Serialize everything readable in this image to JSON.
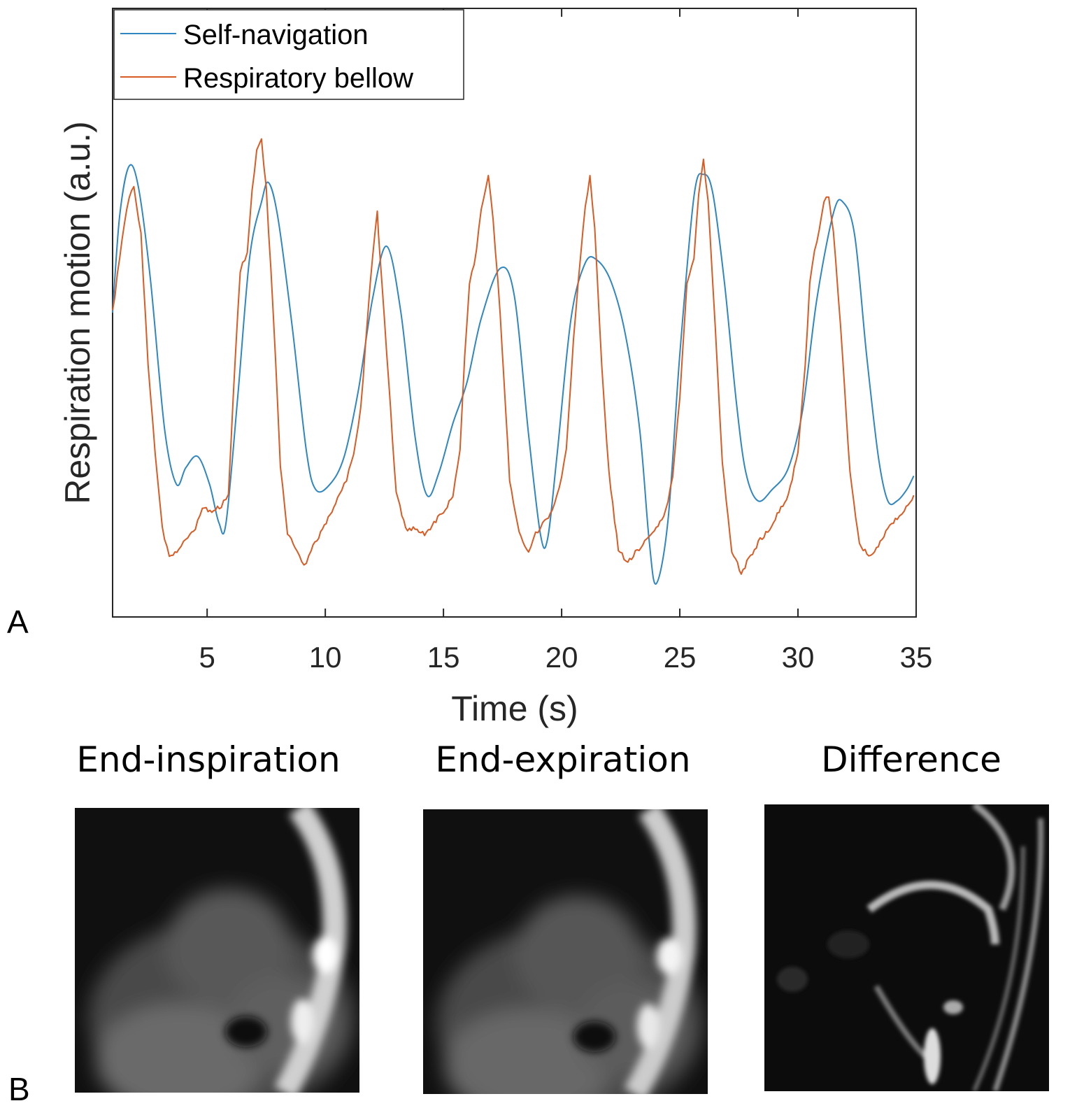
{
  "panel_labels": {
    "a": "A",
    "b": "B"
  },
  "chart_data": {
    "type": "line",
    "title": "",
    "xlabel": "Time (s)",
    "ylabel": "Respiration motion (a.u.)",
    "xlim": [
      1,
      35
    ],
    "ylim": [
      -1.1,
      1.1
    ],
    "xticks": [
      5,
      10,
      15,
      20,
      25,
      30,
      35
    ],
    "xtick_labels": [
      "5",
      "10",
      "15",
      "20",
      "25",
      "30",
      "35"
    ],
    "grid": false,
    "legend_position": "top-left",
    "series": [
      {
        "name": "Self-navigation",
        "color": "#2f86c1",
        "points": [
          [
            1,
            0.0
          ],
          [
            1.3,
            0.35
          ],
          [
            1.7,
            0.53
          ],
          [
            2.1,
            0.45
          ],
          [
            2.6,
            0.12
          ],
          [
            3.2,
            -0.42
          ],
          [
            3.7,
            -0.62
          ],
          [
            4.1,
            -0.56
          ],
          [
            4.6,
            -0.52
          ],
          [
            5.1,
            -0.62
          ],
          [
            5.5,
            -0.76
          ],
          [
            5.8,
            -0.76
          ],
          [
            6.3,
            -0.3
          ],
          [
            6.8,
            0.2
          ],
          [
            7.3,
            0.4
          ],
          [
            7.6,
            0.47
          ],
          [
            8.0,
            0.34
          ],
          [
            8.6,
            -0.05
          ],
          [
            9.2,
            -0.5
          ],
          [
            9.6,
            -0.64
          ],
          [
            10.2,
            -0.62
          ],
          [
            10.8,
            -0.52
          ],
          [
            11.4,
            -0.28
          ],
          [
            12.0,
            0.05
          ],
          [
            12.6,
            0.24
          ],
          [
            13.2,
            0.0
          ],
          [
            13.8,
            -0.45
          ],
          [
            14.3,
            -0.66
          ],
          [
            14.8,
            -0.58
          ],
          [
            15.4,
            -0.4
          ],
          [
            16.0,
            -0.25
          ],
          [
            16.6,
            -0.02
          ],
          [
            17.4,
            0.16
          ],
          [
            18.0,
            0.06
          ],
          [
            18.6,
            -0.44
          ],
          [
            19.1,
            -0.8
          ],
          [
            19.4,
            -0.82
          ],
          [
            19.8,
            -0.52
          ],
          [
            20.4,
            -0.02
          ],
          [
            21.0,
            0.18
          ],
          [
            21.5,
            0.19
          ],
          [
            22.1,
            0.11
          ],
          [
            22.7,
            -0.08
          ],
          [
            23.3,
            -0.42
          ],
          [
            23.7,
            -0.82
          ],
          [
            24.0,
            -0.98
          ],
          [
            24.5,
            -0.75
          ],
          [
            25.0,
            -0.15
          ],
          [
            25.6,
            0.42
          ],
          [
            26.0,
            0.5
          ],
          [
            26.4,
            0.43
          ],
          [
            26.9,
            0.1
          ],
          [
            27.4,
            -0.33
          ],
          [
            27.8,
            -0.58
          ],
          [
            28.3,
            -0.68
          ],
          [
            28.9,
            -0.64
          ],
          [
            29.6,
            -0.56
          ],
          [
            30.2,
            -0.35
          ],
          [
            30.8,
            0.05
          ],
          [
            31.5,
            0.36
          ],
          [
            31.9,
            0.4
          ],
          [
            32.4,
            0.28
          ],
          [
            32.9,
            -0.15
          ],
          [
            33.4,
            -0.52
          ],
          [
            33.8,
            -0.68
          ],
          [
            34.2,
            -0.68
          ],
          [
            34.6,
            -0.64
          ],
          [
            34.9,
            -0.59
          ]
        ]
      },
      {
        "name": "Respiratory bellow",
        "color": "#d95b24",
        "points": [
          [
            1,
            0.0
          ],
          [
            1.3,
            0.2
          ],
          [
            1.6,
            0.38
          ],
          [
            1.9,
            0.46
          ],
          [
            2.2,
            0.28
          ],
          [
            2.5,
            -0.18
          ],
          [
            2.8,
            -0.5
          ],
          [
            3.1,
            -0.78
          ],
          [
            3.4,
            -0.88
          ],
          [
            3.8,
            -0.86
          ],
          [
            4.1,
            -0.82
          ],
          [
            4.5,
            -0.78
          ],
          [
            4.8,
            -0.7
          ],
          [
            5.2,
            -0.72
          ],
          [
            5.6,
            -0.7
          ],
          [
            5.9,
            -0.66
          ],
          [
            6.1,
            -0.3
          ],
          [
            6.4,
            0.15
          ],
          [
            6.7,
            0.22
          ],
          [
            6.9,
            0.45
          ],
          [
            7.1,
            0.58
          ],
          [
            7.3,
            0.62
          ],
          [
            7.5,
            0.45
          ],
          [
            7.8,
            0.0
          ],
          [
            8.1,
            -0.55
          ],
          [
            8.4,
            -0.8
          ],
          [
            8.8,
            -0.86
          ],
          [
            9.1,
            -0.92
          ],
          [
            9.4,
            -0.86
          ],
          [
            9.8,
            -0.8
          ],
          [
            10.2,
            -0.73
          ],
          [
            10.6,
            -0.66
          ],
          [
            10.9,
            -0.6
          ],
          [
            11.2,
            -0.52
          ],
          [
            11.5,
            -0.35
          ],
          [
            11.8,
            0.0
          ],
          [
            12.0,
            0.2
          ],
          [
            12.2,
            0.36
          ],
          [
            12.3,
            0.22
          ],
          [
            12.6,
            -0.15
          ],
          [
            13.0,
            -0.65
          ],
          [
            13.4,
            -0.78
          ],
          [
            13.8,
            -0.78
          ],
          [
            14.2,
            -0.8
          ],
          [
            14.6,
            -0.76
          ],
          [
            15.0,
            -0.72
          ],
          [
            15.4,
            -0.66
          ],
          [
            15.7,
            -0.5
          ],
          [
            15.9,
            -0.15
          ],
          [
            16.1,
            0.1
          ],
          [
            16.4,
            0.22
          ],
          [
            16.6,
            0.38
          ],
          [
            16.9,
            0.5
          ],
          [
            17.1,
            0.34
          ],
          [
            17.4,
            0.0
          ],
          [
            17.8,
            -0.6
          ],
          [
            18.2,
            -0.8
          ],
          [
            18.6,
            -0.86
          ],
          [
            18.9,
            -0.8
          ],
          [
            19.2,
            -0.76
          ],
          [
            19.6,
            -0.72
          ],
          [
            19.9,
            -0.64
          ],
          [
            20.2,
            -0.5
          ],
          [
            20.5,
            -0.1
          ],
          [
            20.8,
            0.2
          ],
          [
            21.0,
            0.38
          ],
          [
            21.2,
            0.5
          ],
          [
            21.4,
            0.3
          ],
          [
            21.7,
            -0.2
          ],
          [
            22.0,
            -0.58
          ],
          [
            22.4,
            -0.86
          ],
          [
            22.8,
            -0.9
          ],
          [
            23.2,
            -0.86
          ],
          [
            23.6,
            -0.82
          ],
          [
            24.0,
            -0.78
          ],
          [
            24.4,
            -0.72
          ],
          [
            24.7,
            -0.6
          ],
          [
            25.0,
            -0.3
          ],
          [
            25.3,
            0.1
          ],
          [
            25.6,
            0.2
          ],
          [
            25.8,
            0.42
          ],
          [
            26.0,
            0.55
          ],
          [
            26.2,
            0.4
          ],
          [
            26.5,
            -0.05
          ],
          [
            26.8,
            -0.55
          ],
          [
            27.2,
            -0.86
          ],
          [
            27.6,
            -0.94
          ],
          [
            28.0,
            -0.88
          ],
          [
            28.4,
            -0.82
          ],
          [
            28.8,
            -0.78
          ],
          [
            29.2,
            -0.72
          ],
          [
            29.6,
            -0.66
          ],
          [
            30.0,
            -0.5
          ],
          [
            30.3,
            -0.2
          ],
          [
            30.5,
            0.1
          ],
          [
            30.7,
            0.22
          ],
          [
            30.9,
            0.3
          ],
          [
            31.1,
            0.4
          ],
          [
            31.3,
            0.42
          ],
          [
            31.5,
            0.3
          ],
          [
            31.8,
            -0.05
          ],
          [
            32.2,
            -0.58
          ],
          [
            32.6,
            -0.84
          ],
          [
            33.0,
            -0.88
          ],
          [
            33.4,
            -0.84
          ],
          [
            33.8,
            -0.78
          ],
          [
            34.2,
            -0.74
          ],
          [
            34.5,
            -0.72
          ],
          [
            34.9,
            -0.66
          ]
        ]
      }
    ]
  },
  "images": [
    {
      "title": "End-inspiration"
    },
    {
      "title": "End-expiration"
    },
    {
      "title": "Difference"
    }
  ]
}
